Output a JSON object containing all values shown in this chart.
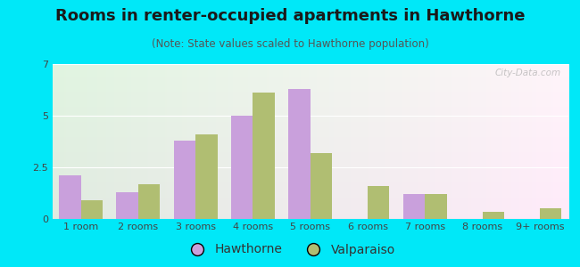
{
  "title": "Rooms in renter-occupied apartments in Hawthorne",
  "subtitle": "(Note: State values scaled to Hawthorne population)",
  "categories": [
    "1 room",
    "2 rooms",
    "3 rooms",
    "4 rooms",
    "5 rooms",
    "6 rooms",
    "7 rooms",
    "8 rooms",
    "9+ rooms"
  ],
  "hawthorne": [
    2.1,
    1.3,
    3.8,
    5.0,
    6.3,
    0.0,
    1.2,
    0.0,
    0.0
  ],
  "valparaiso": [
    0.9,
    1.7,
    4.1,
    6.1,
    3.2,
    1.6,
    1.2,
    0.35,
    0.5
  ],
  "hawthorne_color": "#c9a0dc",
  "valparaiso_color": "#b0be72",
  "bg_outer": "#00e8f8",
  "ylim": [
    0,
    7.5
  ],
  "yticks": [
    0,
    2.5,
    5,
    7.5
  ],
  "bar_width": 0.38,
  "title_fontsize": 13,
  "subtitle_fontsize": 8.5,
  "tick_fontsize": 8,
  "legend_fontsize": 10,
  "watermark": "City-Data.com"
}
